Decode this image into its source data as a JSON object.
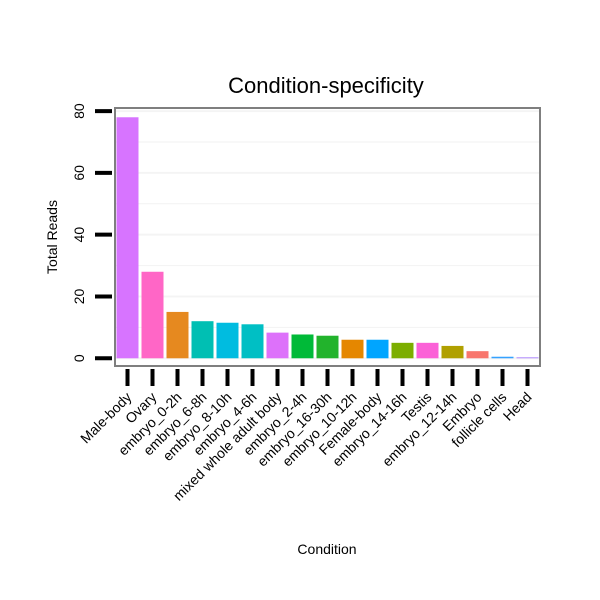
{
  "chart_data": {
    "type": "bar",
    "title": "Condition-specificity",
    "xlabel": "Condition",
    "ylabel": "Total Reads",
    "ylim": [
      -2.5,
      81
    ],
    "yticks": [
      0,
      20,
      40,
      60,
      80
    ],
    "grid": true,
    "legend": "none",
    "categories": [
      "Male-body",
      "Ovary",
      "embryo_0-2h",
      "embryo_6-8h",
      "embryo_8-10h",
      "embryo_4-6h",
      "mixed whole adult body",
      "embryo_2-4h",
      "embryo_16-30h",
      "embryo_10-12h",
      "Female-body",
      "embryo_14-16h",
      "Testis",
      "embryo_12-14h",
      "Embryo",
      "follicle cells",
      "Head"
    ],
    "values": [
      78,
      28,
      15,
      12,
      11.5,
      11,
      8.3,
      7.7,
      7.3,
      6,
      6,
      5,
      5,
      4,
      2.3,
      0.5,
      0.3
    ],
    "colors": [
      "#D774FF",
      "#FF66C6",
      "#E6891F",
      "#00BFB3",
      "#00BCE0",
      "#00BFC4",
      "#DD71FA",
      "#00BA38",
      "#22B32C",
      "#E58700",
      "#00A5FF",
      "#7CAE00",
      "#FB61D7",
      "#B0A000",
      "#F8766D",
      "#35A2FF",
      "#AB82FF"
    ]
  }
}
